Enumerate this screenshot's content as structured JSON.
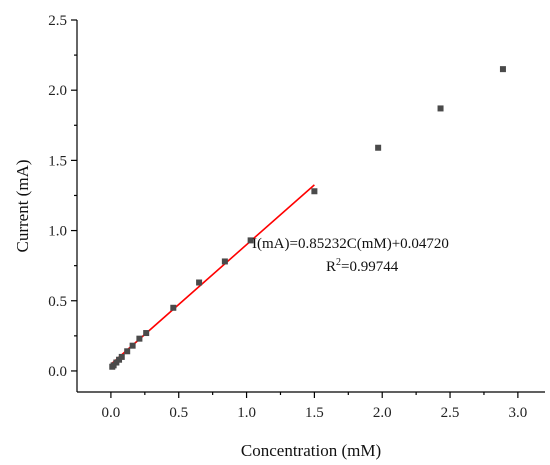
{
  "chart_data": {
    "type": "scatter",
    "xlabel": "Concentration (mM)",
    "ylabel": "Current (mA)",
    "xlim": [
      -0.25,
      3.2
    ],
    "ylim": [
      -0.15,
      2.5
    ],
    "x_ticks": [
      0.0,
      0.5,
      1.0,
      1.5,
      2.0,
      2.5,
      3.0
    ],
    "x_tick_labels": [
      "0.0",
      "0.5",
      "1.0",
      "1.5",
      "2.0",
      "2.5",
      "3.0"
    ],
    "y_ticks": [
      0.0,
      0.5,
      1.0,
      1.5,
      2.0,
      2.5
    ],
    "y_tick_labels": [
      "0.0",
      "0.5",
      "1.0",
      "1.5",
      "2.0",
      "2.5"
    ],
    "grid": false,
    "series": [
      {
        "marker": "square",
        "color": "#4a4a4a",
        "points": [
          {
            "x": 0.01,
            "y": 0.03
          },
          {
            "x": 0.02,
            "y": 0.04
          },
          {
            "x": 0.04,
            "y": 0.06
          },
          {
            "x": 0.06,
            "y": 0.08
          },
          {
            "x": 0.08,
            "y": 0.1
          },
          {
            "x": 0.12,
            "y": 0.14
          },
          {
            "x": 0.16,
            "y": 0.18
          },
          {
            "x": 0.21,
            "y": 0.23
          },
          {
            "x": 0.26,
            "y": 0.27
          },
          {
            "x": 0.46,
            "y": 0.45
          },
          {
            "x": 0.65,
            "y": 0.63
          },
          {
            "x": 0.84,
            "y": 0.78
          },
          {
            "x": 1.03,
            "y": 0.93
          },
          {
            "x": 1.5,
            "y": 1.28
          },
          {
            "x": 1.97,
            "y": 1.59
          },
          {
            "x": 2.43,
            "y": 1.87
          },
          {
            "x": 2.89,
            "y": 2.15
          }
        ]
      }
    ],
    "fit_line": {
      "color": "#ff0000",
      "slope": 0.85232,
      "intercept": 0.0472,
      "x_range": [
        0.0,
        1.5
      ]
    },
    "annotations": {
      "equation": "I(mA)=0.85232C(mM)+0.04720",
      "r2_prefix": "R",
      "r2_sup": "2",
      "r2_value": "=0.99744"
    }
  }
}
